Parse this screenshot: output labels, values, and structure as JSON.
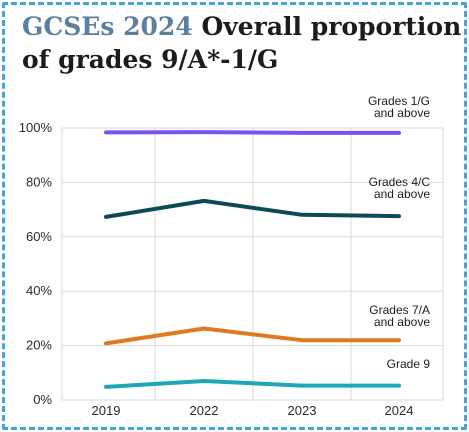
{
  "title": {
    "highlight": "GCSEs 2024",
    "rest_line1": "Overall proportion",
    "line2": "of grades 9/A*-1/G"
  },
  "chart_data": {
    "type": "line",
    "x": [
      "2019",
      "2022",
      "2023",
      "2024"
    ],
    "ylim": [
      0,
      100
    ],
    "yticks": [
      "0%",
      "20%",
      "40%",
      "60%",
      "80%",
      "100%"
    ],
    "grid": true,
    "series": [
      {
        "name": "Grades 1/G and above",
        "label_lines": [
          "Grades 1/G",
          "and above"
        ],
        "color": "#7b52f0",
        "values": [
          98.4,
          98.5,
          98.2,
          98.2
        ]
      },
      {
        "name": "Grades 4/C and above",
        "label_lines": [
          "Grades 4/C",
          "and above"
        ],
        "color": "#0d4a55",
        "values": [
          67.3,
          73.2,
          68.1,
          67.6
        ]
      },
      {
        "name": "Grades 7/A and above",
        "label_lines": [
          "Grades 7/A",
          "and above"
        ],
        "color": "#e07a1f",
        "values": [
          20.8,
          26.3,
          22.0,
          22.0
        ]
      },
      {
        "name": "Grade 9",
        "label_lines": [
          "Grade 9"
        ],
        "color": "#1ea7b5",
        "values": [
          4.8,
          7.0,
          5.3,
          5.3
        ]
      }
    ]
  }
}
